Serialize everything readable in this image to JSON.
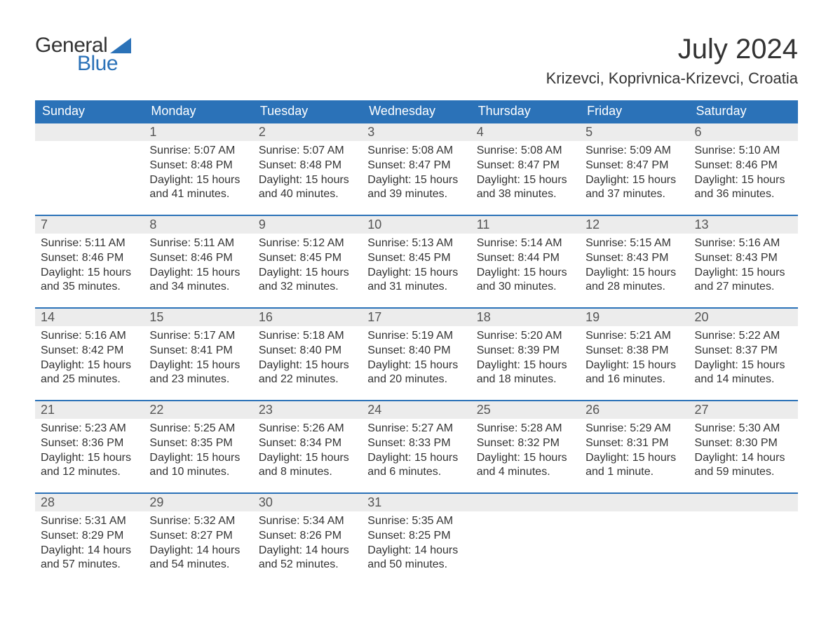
{
  "logo": {
    "word1": "General",
    "word2": "Blue",
    "triangle_color": "#2b72b8"
  },
  "title": "July 2024",
  "subtitle": "Krizevci, Koprivnica-Krizevci, Croatia",
  "colors": {
    "header_bg": "#2b72b8",
    "row_bar_bg": "#ececec",
    "row_bar_border": "#2b72b8",
    "text": "#333333"
  },
  "weekdays": [
    "Sunday",
    "Monday",
    "Tuesday",
    "Wednesday",
    "Thursday",
    "Friday",
    "Saturday"
  ],
  "weeks": [
    [
      {
        "blank": true
      },
      {
        "day": "1",
        "sunrise": "Sunrise: 5:07 AM",
        "sunset": "Sunset: 8:48 PM",
        "dl1": "Daylight: 15 hours",
        "dl2": "and 41 minutes."
      },
      {
        "day": "2",
        "sunrise": "Sunrise: 5:07 AM",
        "sunset": "Sunset: 8:48 PM",
        "dl1": "Daylight: 15 hours",
        "dl2": "and 40 minutes."
      },
      {
        "day": "3",
        "sunrise": "Sunrise: 5:08 AM",
        "sunset": "Sunset: 8:47 PM",
        "dl1": "Daylight: 15 hours",
        "dl2": "and 39 minutes."
      },
      {
        "day": "4",
        "sunrise": "Sunrise: 5:08 AM",
        "sunset": "Sunset: 8:47 PM",
        "dl1": "Daylight: 15 hours",
        "dl2": "and 38 minutes."
      },
      {
        "day": "5",
        "sunrise": "Sunrise: 5:09 AM",
        "sunset": "Sunset: 8:47 PM",
        "dl1": "Daylight: 15 hours",
        "dl2": "and 37 minutes."
      },
      {
        "day": "6",
        "sunrise": "Sunrise: 5:10 AM",
        "sunset": "Sunset: 8:46 PM",
        "dl1": "Daylight: 15 hours",
        "dl2": "and 36 minutes."
      }
    ],
    [
      {
        "day": "7",
        "sunrise": "Sunrise: 5:11 AM",
        "sunset": "Sunset: 8:46 PM",
        "dl1": "Daylight: 15 hours",
        "dl2": "and 35 minutes."
      },
      {
        "day": "8",
        "sunrise": "Sunrise: 5:11 AM",
        "sunset": "Sunset: 8:46 PM",
        "dl1": "Daylight: 15 hours",
        "dl2": "and 34 minutes."
      },
      {
        "day": "9",
        "sunrise": "Sunrise: 5:12 AM",
        "sunset": "Sunset: 8:45 PM",
        "dl1": "Daylight: 15 hours",
        "dl2": "and 32 minutes."
      },
      {
        "day": "10",
        "sunrise": "Sunrise: 5:13 AM",
        "sunset": "Sunset: 8:45 PM",
        "dl1": "Daylight: 15 hours",
        "dl2": "and 31 minutes."
      },
      {
        "day": "11",
        "sunrise": "Sunrise: 5:14 AM",
        "sunset": "Sunset: 8:44 PM",
        "dl1": "Daylight: 15 hours",
        "dl2": "and 30 minutes."
      },
      {
        "day": "12",
        "sunrise": "Sunrise: 5:15 AM",
        "sunset": "Sunset: 8:43 PM",
        "dl1": "Daylight: 15 hours",
        "dl2": "and 28 minutes."
      },
      {
        "day": "13",
        "sunrise": "Sunrise: 5:16 AM",
        "sunset": "Sunset: 8:43 PM",
        "dl1": "Daylight: 15 hours",
        "dl2": "and 27 minutes."
      }
    ],
    [
      {
        "day": "14",
        "sunrise": "Sunrise: 5:16 AM",
        "sunset": "Sunset: 8:42 PM",
        "dl1": "Daylight: 15 hours",
        "dl2": "and 25 minutes."
      },
      {
        "day": "15",
        "sunrise": "Sunrise: 5:17 AM",
        "sunset": "Sunset: 8:41 PM",
        "dl1": "Daylight: 15 hours",
        "dl2": "and 23 minutes."
      },
      {
        "day": "16",
        "sunrise": "Sunrise: 5:18 AM",
        "sunset": "Sunset: 8:40 PM",
        "dl1": "Daylight: 15 hours",
        "dl2": "and 22 minutes."
      },
      {
        "day": "17",
        "sunrise": "Sunrise: 5:19 AM",
        "sunset": "Sunset: 8:40 PM",
        "dl1": "Daylight: 15 hours",
        "dl2": "and 20 minutes."
      },
      {
        "day": "18",
        "sunrise": "Sunrise: 5:20 AM",
        "sunset": "Sunset: 8:39 PM",
        "dl1": "Daylight: 15 hours",
        "dl2": "and 18 minutes."
      },
      {
        "day": "19",
        "sunrise": "Sunrise: 5:21 AM",
        "sunset": "Sunset: 8:38 PM",
        "dl1": "Daylight: 15 hours",
        "dl2": "and 16 minutes."
      },
      {
        "day": "20",
        "sunrise": "Sunrise: 5:22 AM",
        "sunset": "Sunset: 8:37 PM",
        "dl1": "Daylight: 15 hours",
        "dl2": "and 14 minutes."
      }
    ],
    [
      {
        "day": "21",
        "sunrise": "Sunrise: 5:23 AM",
        "sunset": "Sunset: 8:36 PM",
        "dl1": "Daylight: 15 hours",
        "dl2": "and 12 minutes."
      },
      {
        "day": "22",
        "sunrise": "Sunrise: 5:25 AM",
        "sunset": "Sunset: 8:35 PM",
        "dl1": "Daylight: 15 hours",
        "dl2": "and 10 minutes."
      },
      {
        "day": "23",
        "sunrise": "Sunrise: 5:26 AM",
        "sunset": "Sunset: 8:34 PM",
        "dl1": "Daylight: 15 hours",
        "dl2": "and 8 minutes."
      },
      {
        "day": "24",
        "sunrise": "Sunrise: 5:27 AM",
        "sunset": "Sunset: 8:33 PM",
        "dl1": "Daylight: 15 hours",
        "dl2": "and 6 minutes."
      },
      {
        "day": "25",
        "sunrise": "Sunrise: 5:28 AM",
        "sunset": "Sunset: 8:32 PM",
        "dl1": "Daylight: 15 hours",
        "dl2": "and 4 minutes."
      },
      {
        "day": "26",
        "sunrise": "Sunrise: 5:29 AM",
        "sunset": "Sunset: 8:31 PM",
        "dl1": "Daylight: 15 hours",
        "dl2": "and 1 minute."
      },
      {
        "day": "27",
        "sunrise": "Sunrise: 5:30 AM",
        "sunset": "Sunset: 8:30 PM",
        "dl1": "Daylight: 14 hours",
        "dl2": "and 59 minutes."
      }
    ],
    [
      {
        "day": "28",
        "sunrise": "Sunrise: 5:31 AM",
        "sunset": "Sunset: 8:29 PM",
        "dl1": "Daylight: 14 hours",
        "dl2": "and 57 minutes."
      },
      {
        "day": "29",
        "sunrise": "Sunrise: 5:32 AM",
        "sunset": "Sunset: 8:27 PM",
        "dl1": "Daylight: 14 hours",
        "dl2": "and 54 minutes."
      },
      {
        "day": "30",
        "sunrise": "Sunrise: 5:34 AM",
        "sunset": "Sunset: 8:26 PM",
        "dl1": "Daylight: 14 hours",
        "dl2": "and 52 minutes."
      },
      {
        "day": "31",
        "sunrise": "Sunrise: 5:35 AM",
        "sunset": "Sunset: 8:25 PM",
        "dl1": "Daylight: 14 hours",
        "dl2": "and 50 minutes."
      },
      {
        "blank": true
      },
      {
        "blank": true
      },
      {
        "blank": true
      }
    ]
  ]
}
